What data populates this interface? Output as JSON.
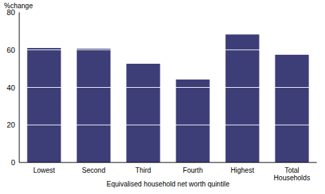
{
  "chart_data": {
    "type": "bar",
    "y_label": "%change",
    "x_label": "Equivalised household net worth quintile",
    "categories": [
      "Lowest",
      "Second",
      "Third",
      "Fourth",
      "Highest",
      "Total Households"
    ],
    "values": [
      61,
      60.6,
      52.6,
      44.2,
      68.2,
      57.4
    ],
    "color": "#3d3d78",
    "ylim": [
      0,
      80
    ],
    "yticks": [
      0,
      20,
      40,
      60,
      80
    ],
    "grid": true
  }
}
